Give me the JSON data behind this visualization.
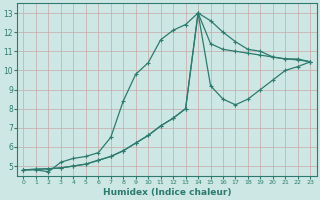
{
  "xlabel": "Humidex (Indice chaleur)",
  "ylabel": "",
  "bg_color": "#cde8e4",
  "grid_color": "#c8a8a8",
  "line_color": "#2d7a6e",
  "xlim": [
    -0.5,
    23.5
  ],
  "ylim": [
    4.5,
    13.5
  ],
  "xticks": [
    0,
    1,
    2,
    3,
    4,
    5,
    6,
    7,
    8,
    9,
    10,
    11,
    12,
    13,
    14,
    15,
    16,
    17,
    18,
    19,
    20,
    21,
    22,
    23
  ],
  "yticks": [
    5,
    6,
    7,
    8,
    9,
    10,
    11,
    12,
    13
  ],
  "line1_x": [
    0,
    1,
    2,
    3,
    4,
    5,
    6,
    7,
    8,
    9,
    10,
    11,
    12,
    13,
    14,
    15,
    16,
    17,
    18,
    19,
    20,
    21,
    22,
    23
  ],
  "line1_y": [
    4.8,
    4.8,
    4.7,
    5.2,
    5.4,
    5.5,
    5.7,
    6.5,
    8.4,
    9.8,
    10.4,
    11.6,
    12.1,
    12.4,
    13.0,
    12.6,
    12.0,
    11.5,
    11.1,
    11.0,
    10.7,
    10.6,
    10.6,
    10.45
  ],
  "line2_x": [
    0,
    1,
    2,
    3,
    4,
    5,
    6,
    7,
    8,
    9,
    10,
    11,
    12,
    13,
    14,
    15,
    16,
    17,
    18,
    19,
    20,
    21,
    22,
    23
  ],
  "line2_y": [
    4.8,
    4.83,
    4.86,
    4.9,
    5.0,
    5.1,
    5.3,
    5.5,
    5.8,
    6.2,
    6.6,
    7.1,
    7.5,
    8.0,
    13.0,
    11.4,
    11.1,
    11.0,
    10.9,
    10.8,
    10.7,
    10.6,
    10.55,
    10.45
  ],
  "line3_x": [
    0,
    1,
    2,
    3,
    4,
    5,
    6,
    7,
    8,
    9,
    10,
    11,
    12,
    13,
    14,
    15,
    16,
    17,
    18,
    19,
    20,
    21,
    22,
    23
  ],
  "line3_y": [
    4.8,
    4.83,
    4.86,
    4.9,
    5.0,
    5.1,
    5.3,
    5.5,
    5.8,
    6.2,
    6.6,
    7.1,
    7.5,
    8.0,
    13.0,
    9.2,
    8.5,
    8.2,
    8.5,
    9.0,
    9.5,
    10.0,
    10.2,
    10.45
  ]
}
